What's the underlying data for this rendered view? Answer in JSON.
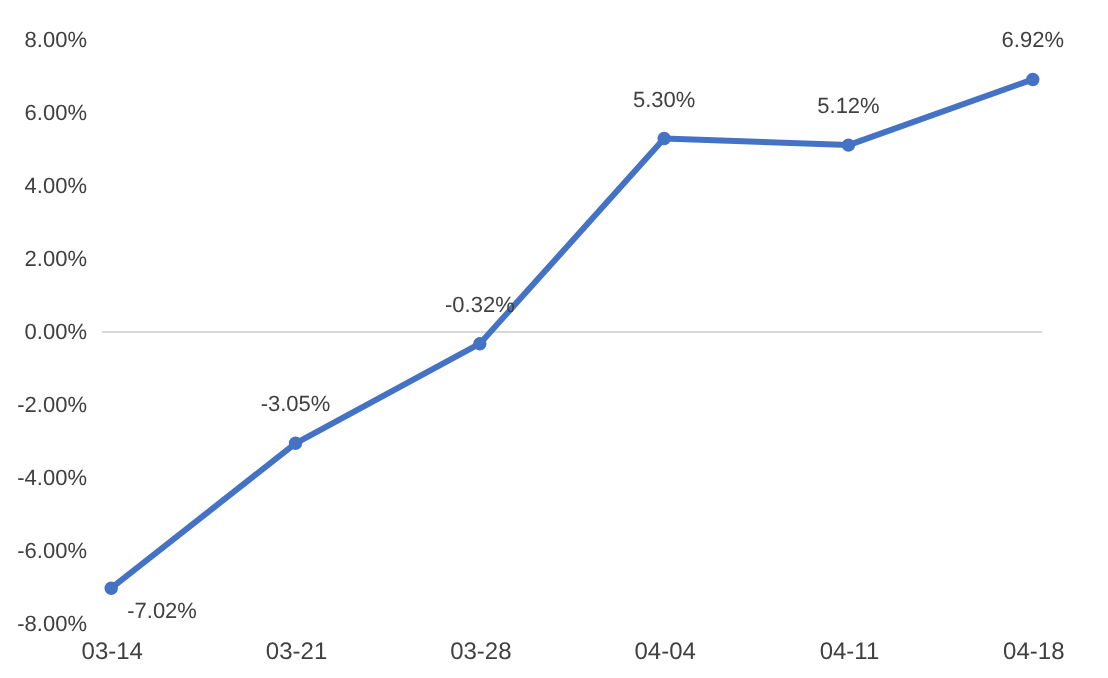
{
  "chart_data": {
    "type": "line",
    "categories": [
      "03-14",
      "03-21",
      "03-28",
      "04-04",
      "04-11",
      "04-18"
    ],
    "series": [
      {
        "color": "#4472c4",
        "values": [
          -7.02,
          -3.05,
          -0.32,
          5.3,
          5.12,
          6.92
        ],
        "value_labels": [
          "-7.02%",
          "-3.05%",
          "-0.32%",
          "5.30%",
          "5.12%",
          "6.92%"
        ]
      }
    ],
    "ylim": [
      -8,
      8
    ],
    "yticks": [
      {
        "value": -8,
        "label": "-8.00%"
      },
      {
        "value": -6,
        "label": "-6.00%"
      },
      {
        "value": -4,
        "label": "-4.00%"
      },
      {
        "value": -2,
        "label": "-2.00%"
      },
      {
        "value": 0,
        "label": "0.00%"
      },
      {
        "value": 2,
        "label": "2.00%"
      },
      {
        "value": 4,
        "label": "4.00%"
      },
      {
        "value": 6,
        "label": "6.00%"
      },
      {
        "value": 8,
        "label": "8.00%"
      }
    ],
    "ref_lines": [
      {
        "axis": "y",
        "value": 0,
        "color": "#d9d9d9"
      }
    ],
    "grid": false,
    "marker": "circle",
    "line_style": "solid"
  }
}
